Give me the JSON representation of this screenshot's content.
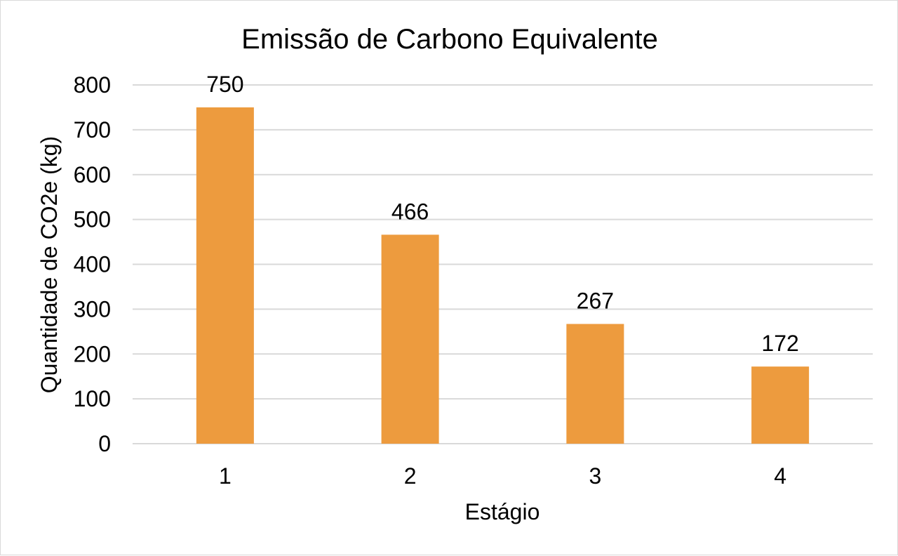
{
  "chart_data": {
    "type": "bar",
    "title": "Emissão de Carbono Equivalente",
    "xlabel": "Estágio",
    "ylabel": "Quantidade de CO2e (kg)",
    "categories": [
      "1",
      "2",
      "3",
      "4"
    ],
    "values": [
      750,
      466,
      267,
      172
    ],
    "data_labels": [
      "750",
      "466",
      "267",
      "172"
    ],
    "ylim": [
      0,
      800
    ],
    "yticks": [
      0,
      100,
      200,
      300,
      400,
      500,
      600,
      700,
      800
    ],
    "ytick_labels": [
      "0",
      "100",
      "200",
      "300",
      "400",
      "500",
      "600",
      "700",
      "800"
    ],
    "grid": true,
    "legend": "none",
    "bar_color": "#ED9B3E"
  }
}
